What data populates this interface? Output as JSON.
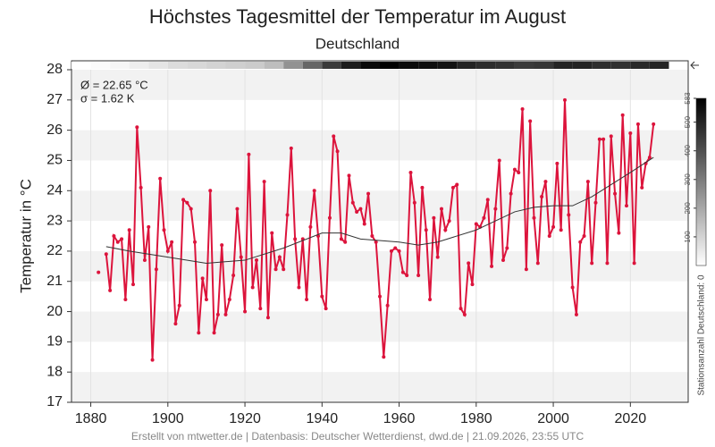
{
  "chart_data": {
    "type": "line",
    "title": "Höchstes Tagesmittel der Temperatur im August",
    "subtitle": "Deutschland",
    "ylabel": "Temperatur in °C",
    "annotations": [
      "Ø = 22.65 °C",
      "σ = 1.62 K"
    ],
    "footer": "Erstellt von mtwetter.de | Datenbasis: Deutscher Wetterdienst, dwd.de | 21.09.2026, 23:55 UTC",
    "x": [
      1882,
      1883,
      1884,
      1885,
      1886,
      1887,
      1888,
      1889,
      1890,
      1891,
      1892,
      1893,
      1894,
      1895,
      1896,
      1897,
      1898,
      1899,
      1900,
      1901,
      1902,
      1903,
      1904,
      1905,
      1906,
      1907,
      1908,
      1909,
      1910,
      1911,
      1912,
      1913,
      1914,
      1915,
      1916,
      1917,
      1918,
      1919,
      1920,
      1921,
      1922,
      1923,
      1924,
      1925,
      1926,
      1927,
      1928,
      1929,
      1930,
      1931,
      1932,
      1933,
      1934,
      1935,
      1936,
      1937,
      1938,
      1939,
      1940,
      1941,
      1942,
      1943,
      1944,
      1945,
      1946,
      1947,
      1948,
      1949,
      1950,
      1951,
      1952,
      1953,
      1954,
      1955,
      1956,
      1957,
      1958,
      1959,
      1960,
      1961,
      1962,
      1963,
      1964,
      1965,
      1966,
      1967,
      1968,
      1969,
      1970,
      1971,
      1972,
      1973,
      1974,
      1975,
      1976,
      1977,
      1978,
      1979,
      1980,
      1981,
      1982,
      1983,
      1984,
      1985,
      1986,
      1987,
      1988,
      1989,
      1990,
      1991,
      1992,
      1993,
      1994,
      1995,
      1996,
      1997,
      1998,
      1999,
      2000,
      2001,
      2002,
      2003,
      2004,
      2005,
      2006,
      2007,
      2008,
      2009,
      2010,
      2011,
      2012,
      2013,
      2014,
      2015,
      2016,
      2017,
      2018,
      2019,
      2020,
      2021,
      2022,
      2023,
      2024,
      2025,
      2026
    ],
    "series": [
      {
        "color": "#dc143c",
        "values": [
          21.3,
          null,
          21.9,
          20.7,
          22.5,
          22.3,
          22.4,
          20.4,
          22.7,
          20.9,
          26.1,
          24.1,
          21.7,
          22.8,
          18.4,
          21.4,
          24.4,
          22.7,
          22.0,
          22.3,
          19.6,
          20.2,
          23.7,
          23.6,
          23.4,
          22.3,
          19.3,
          21.1,
          20.4,
          24.0,
          19.3,
          19.9,
          22.2,
          19.9,
          20.4,
          21.2,
          23.4,
          21.8,
          20.0,
          25.2,
          20.8,
          21.7,
          20.1,
          24.3,
          19.8,
          22.6,
          21.4,
          21.8,
          21.4,
          23.2,
          25.4,
          22.4,
          20.8,
          22.4,
          20.4,
          22.8,
          24.0,
          22.5,
          20.5,
          20.1,
          23.1,
          25.8,
          25.3,
          22.4,
          22.3,
          24.5,
          23.6,
          23.3,
          23.4,
          22.9,
          23.9,
          22.5,
          22.3,
          20.5,
          18.5,
          20.2,
          22.0,
          22.1,
          22.0,
          21.3,
          21.2,
          24.6,
          23.6,
          21.2,
          24.1,
          22.7,
          20.4,
          23.1,
          21.8,
          23.4,
          22.7,
          23.0,
          24.1,
          24.2,
          20.1,
          19.9,
          21.6,
          20.9,
          22.9,
          22.8,
          23.1,
          23.7,
          21.5,
          23.4,
          25.0,
          21.7,
          22.1,
          23.9,
          24.7,
          24.6,
          26.7,
          21.4,
          26.3,
          23.1,
          21.6,
          23.8,
          24.3,
          22.5,
          22.8,
          24.9,
          22.7,
          27.0,
          23.2,
          20.8,
          19.9,
          22.3,
          22.5,
          24.3,
          21.6,
          23.6,
          25.7,
          25.7,
          21.6,
          25.8,
          23.9,
          22.6,
          26.5,
          23.5,
          25.9,
          21.6,
          26.2,
          24.1,
          24.9,
          25.1,
          26.2
        ]
      },
      {
        "color": "#333333",
        "x": [
          1884,
          1890,
          1900,
          1910,
          1920,
          1930,
          1940,
          1945,
          1950,
          1960,
          1965,
          1970,
          1980,
          1990,
          1995,
          2000,
          2005,
          2010,
          2020,
          2026
        ],
        "values": [
          22.15,
          22.0,
          21.8,
          21.6,
          21.7,
          22.1,
          22.6,
          22.6,
          22.4,
          22.3,
          22.2,
          22.3,
          22.7,
          23.3,
          23.45,
          23.5,
          23.5,
          23.8,
          24.6,
          25.1
        ]
      }
    ],
    "xlim": [
      1875,
      2035
    ],
    "xticks": [
      1880,
      1900,
      1920,
      1940,
      1960,
      1980,
      2000,
      2020
    ],
    "ylim": [
      17,
      28
    ],
    "yticks": [
      17,
      18,
      19,
      20,
      21,
      22,
      23,
      24,
      25,
      26,
      27,
      28
    ],
    "grid": true,
    "stations": {
      "label": "Stationsanzahl Deutschland: 0",
      "x": [
        1875,
        1880,
        1885,
        1890,
        1895,
        1900,
        1905,
        1910,
        1915,
        1920,
        1925,
        1930,
        1935,
        1940,
        1945,
        1950,
        1955,
        1960,
        1965,
        1970,
        1975,
        1980,
        1985,
        1990,
        1995,
        2000,
        2005,
        2010,
        2015,
        2020,
        2025
      ],
      "values": [
        0,
        10,
        20,
        40,
        60,
        80,
        90,
        100,
        110,
        120,
        150,
        250,
        350,
        450,
        520,
        560,
        583,
        560,
        550,
        540,
        500,
        480,
        470,
        450,
        460,
        500,
        500,
        480,
        470,
        490,
        500
      ],
      "lim": [
        0,
        583
      ],
      "ticks": [
        100,
        200,
        300,
        400,
        500,
        583
      ]
    }
  }
}
